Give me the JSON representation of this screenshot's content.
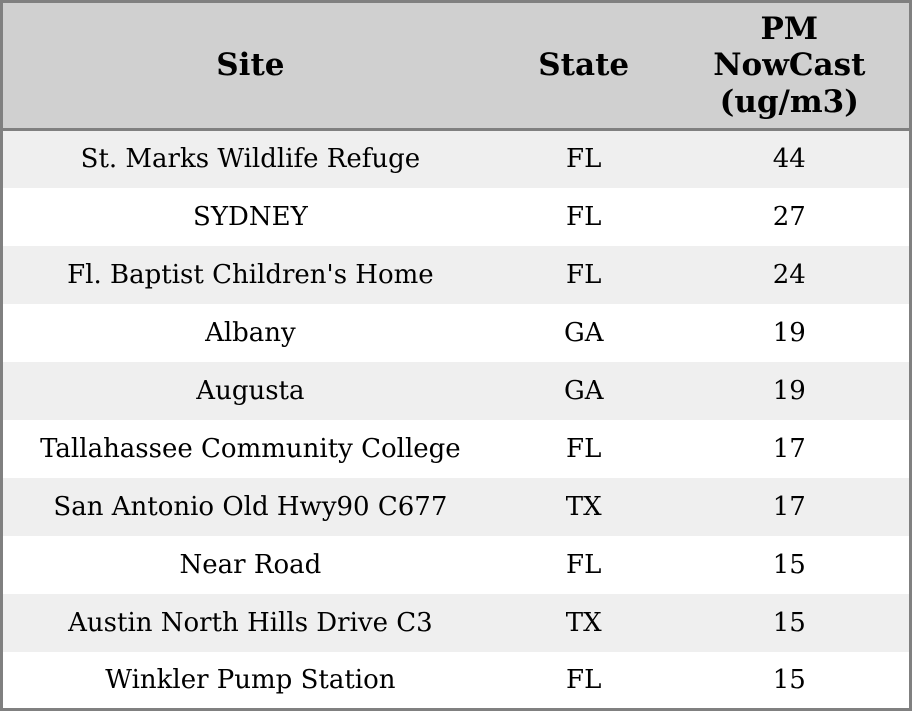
{
  "chart_data": {
    "type": "table",
    "columns": [
      {
        "field": "site",
        "label": "Site"
      },
      {
        "field": "state",
        "label": "State"
      },
      {
        "field": "pm_nowcast",
        "label": "PM\nNowCast\n(ug/m3)"
      }
    ],
    "rows": [
      {
        "site": "St. Marks Wildlife Refuge",
        "state": "FL",
        "pm_nowcast": 44
      },
      {
        "site": "SYDNEY",
        "state": "FL",
        "pm_nowcast": 27
      },
      {
        "site": "Fl. Baptist Children's Home",
        "state": "FL",
        "pm_nowcast": 24
      },
      {
        "site": "Albany",
        "state": "GA",
        "pm_nowcast": 19
      },
      {
        "site": "Augusta",
        "state": "GA",
        "pm_nowcast": 19
      },
      {
        "site": "Tallahassee Community College",
        "state": "FL",
        "pm_nowcast": 17
      },
      {
        "site": "San Antonio Old Hwy90 C677",
        "state": "TX",
        "pm_nowcast": 17
      },
      {
        "site": "Near Road",
        "state": "FL",
        "pm_nowcast": 15
      },
      {
        "site": "Austin North Hills Drive C3",
        "state": "TX",
        "pm_nowcast": 15
      },
      {
        "site": "Winkler Pump Station",
        "state": "FL",
        "pm_nowcast": 15
      }
    ]
  },
  "colors": {
    "header_bg": "#d0d0d0",
    "row_stripe_bg": "#efefef",
    "row_bg": "#ffffff",
    "border": "#808080",
    "text": "#000000"
  }
}
